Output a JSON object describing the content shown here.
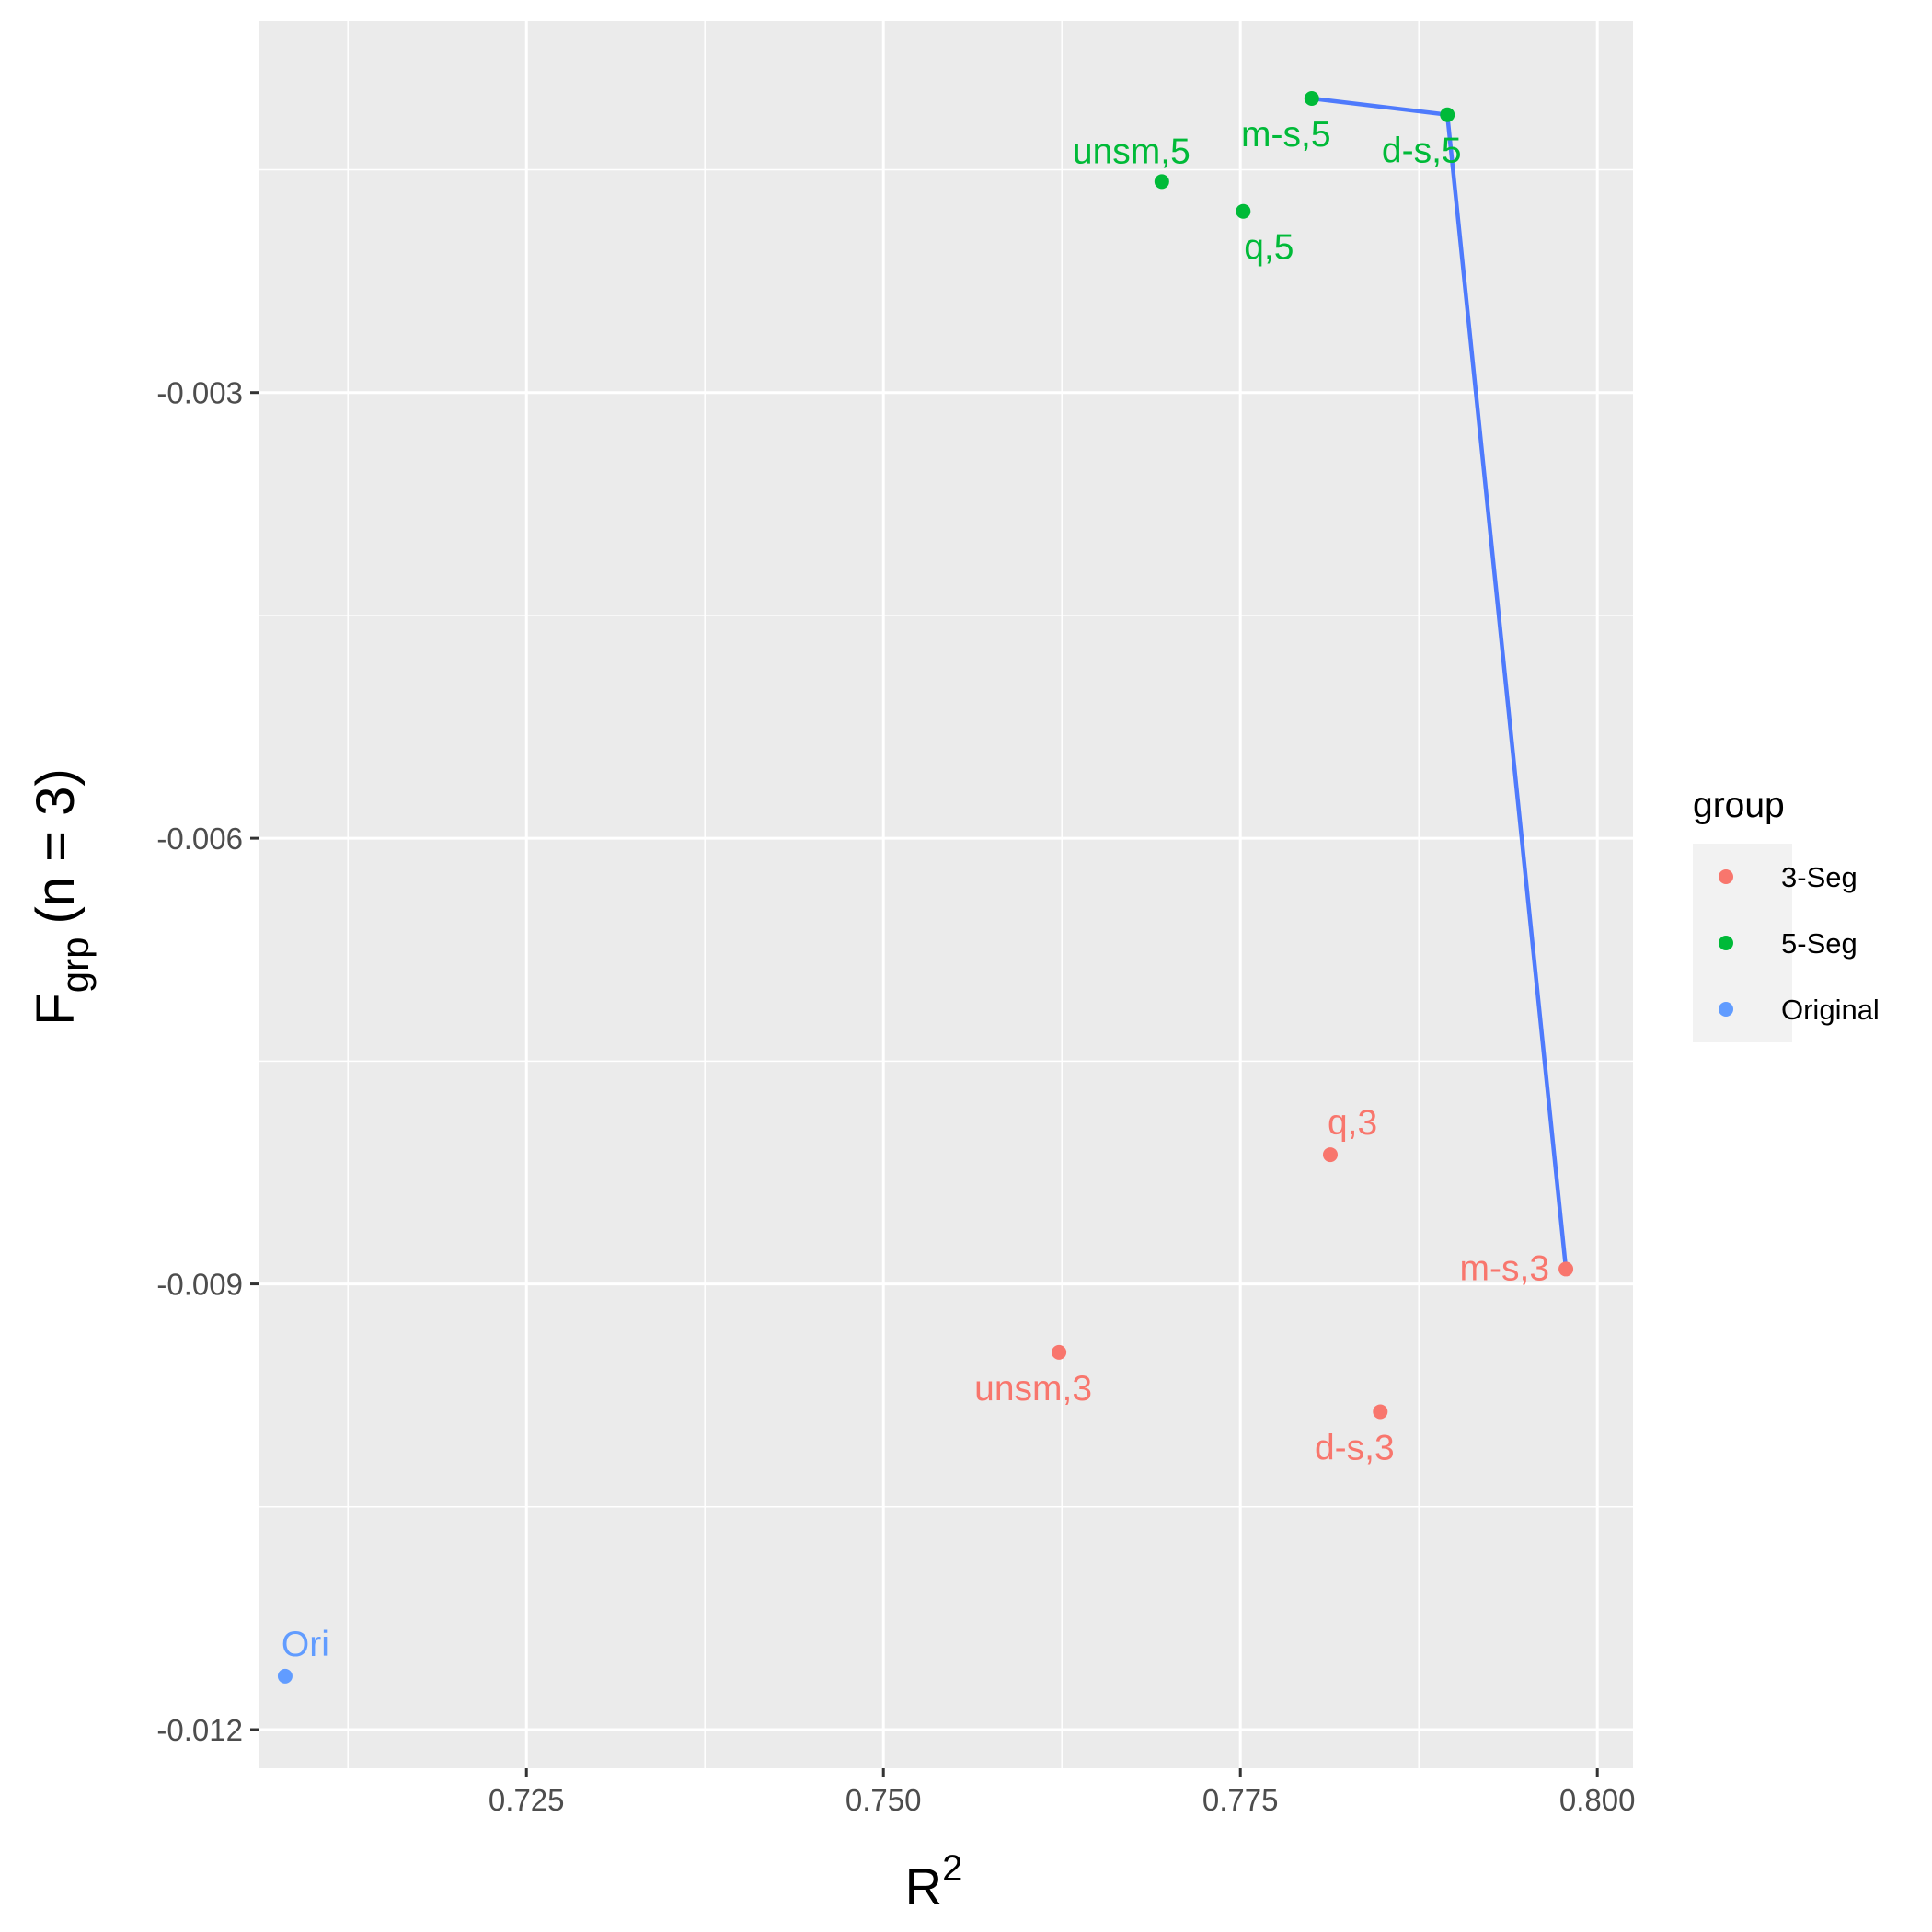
{
  "chart_data": {
    "type": "scatter",
    "title": "",
    "xlabel": {
      "base": "R",
      "sup": "2"
    },
    "ylabel": {
      "base": "F",
      "sub": "grp",
      "rest": "(n = 3)"
    },
    "xlim": [
      0.7063,
      0.8025
    ],
    "ylim": [
      -0.01226,
      -0.0005
    ],
    "x_ticks": [
      0.725,
      0.75,
      0.775,
      0.8
    ],
    "x_tick_labels": [
      "0.725",
      "0.750",
      "0.775",
      "0.800"
    ],
    "y_ticks": [
      -0.003,
      -0.006,
      -0.009,
      -0.012
    ],
    "y_tick_labels": [
      "-0.003",
      "-0.006",
      "-0.009",
      "-0.012"
    ],
    "grid": true,
    "legend": {
      "title": "group",
      "position": "right",
      "entries": [
        {
          "label": "3-Seg",
          "color": "#F8766D"
        },
        {
          "label": "5-Seg",
          "color": "#00BA38"
        },
        {
          "label": "Original",
          "color": "#619CFF"
        }
      ]
    },
    "series": [
      {
        "name": "3-Seg",
        "color": "#F8766D",
        "points": [
          {
            "label": "q,3",
            "x": 0.7813,
            "y": -0.00813
          },
          {
            "label": "m-s,3",
            "x": 0.7978,
            "y": -0.0089
          },
          {
            "label": "unsm,3",
            "x": 0.7623,
            "y": -0.00946
          },
          {
            "label": "d-s,3",
            "x": 0.7848,
            "y": -0.00986
          }
        ]
      },
      {
        "name": "5-Seg",
        "color": "#00BA38",
        "points": [
          {
            "label": "m-s,5",
            "x": 0.78,
            "y": -0.00102
          },
          {
            "label": "d-s,5",
            "x": 0.7895,
            "y": -0.00113
          },
          {
            "label": "unsm,5",
            "x": 0.7695,
            "y": -0.00158
          },
          {
            "label": "q,5",
            "x": 0.7752,
            "y": -0.00178
          }
        ]
      },
      {
        "name": "Original",
        "color": "#619CFF",
        "points": [
          {
            "label": "Ori",
            "x": 0.7081,
            "y": -0.01164
          }
        ]
      }
    ],
    "pareto_line": {
      "color": "#3366FF",
      "points": [
        {
          "x": 0.78,
          "y": -0.00102
        },
        {
          "x": 0.7895,
          "y": -0.00113
        },
        {
          "x": 0.7978,
          "y": -0.0089
        }
      ]
    }
  }
}
